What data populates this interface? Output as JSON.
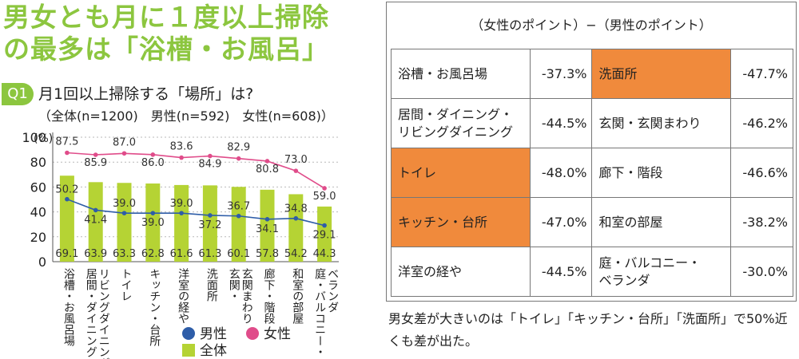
{
  "title_lines": [
    "男女とも月に１度以上掃除",
    "の最多は「浴槽・お風呂」"
  ],
  "question": {
    "badge": "Q1",
    "text": "月1回以上掃除する「場所」は?",
    "sub": "（全体(n=1200)　男性(n=592)　女性(n=608)）"
  },
  "chart_data": {
    "type": "bar",
    "categories": [
      "浴槽・お風呂場",
      "居間・ダイニング・リビングダイニング",
      "トイレ",
      "キッチン・台所",
      "洋室の経や",
      "洗面所",
      "玄関・玄関まわり",
      "廊下・階段",
      "和室の部屋",
      "庭・バルコニー・ベランダ"
    ],
    "category_labels": [
      "浴槽・お風呂場",
      "居間・ダイニング・\nリビングダイニング",
      "トイレ",
      "キッチン・台所",
      "洋室の経や",
      "洗面所",
      "玄関・\n玄関まわり",
      "廊下・階段",
      "和室の部屋",
      "庭・バルコニー・\nベランダ"
    ],
    "series": [
      {
        "name": "全体",
        "type": "bar",
        "color": "#b5d334",
        "values": [
          69.1,
          63.9,
          63.3,
          62.8,
          61.6,
          61.3,
          60.1,
          57.8,
          54.2,
          44.3
        ]
      },
      {
        "name": "男性",
        "type": "line",
        "color": "#2e5da8",
        "values": [
          50.2,
          41.4,
          39.0,
          39.0,
          39.0,
          37.2,
          36.7,
          34.1,
          34.8,
          29.1
        ]
      },
      {
        "name": "女性",
        "type": "line",
        "color": "#e04c8a",
        "values": [
          87.5,
          85.9,
          87.0,
          86.0,
          83.6,
          84.9,
          82.9,
          80.8,
          73.0,
          59.0
        ]
      }
    ],
    "y_unit_label": "(%)",
    "y_ticks": [
      "100",
      "80",
      "60",
      "40",
      "20",
      "0"
    ],
    "ylim": [
      0,
      100
    ],
    "legend": [
      "男性",
      "女性",
      "全体"
    ],
    "legend_position": "bottom-right"
  },
  "diff_panel": {
    "header": "（女性のポイント）−（男性のポイント）",
    "rows": [
      {
        "left": {
          "name": "浴槽・お風呂場",
          "value": "-37.3%",
          "highlight": false
        },
        "right": {
          "name": "洗面所",
          "value": "-47.7%",
          "highlight": true
        }
      },
      {
        "left": {
          "name": "居間・ダイニング・\nリビングダイニング",
          "value": "-44.5%",
          "highlight": false
        },
        "right": {
          "name": "玄関・玄関まわり",
          "value": "-46.2%",
          "highlight": false
        }
      },
      {
        "left": {
          "name": "トイレ",
          "value": "-48.0%",
          "highlight": true
        },
        "right": {
          "name": "廊下・階段",
          "value": "-46.6%",
          "highlight": false
        }
      },
      {
        "left": {
          "name": "キッチン・台所",
          "value": "-47.0%",
          "highlight": true
        },
        "right": {
          "name": "和室の部屋",
          "value": "-38.2%",
          "highlight": false
        }
      },
      {
        "left": {
          "name": "洋室の経や",
          "value": "-44.5%",
          "highlight": false
        },
        "right": {
          "name": "庭・バルコニー・\nベランダ",
          "value": "-30.0%",
          "highlight": false
        }
      }
    ],
    "highlight_color": "#f08a3c"
  },
  "note": "男女差が大きいのは「トイレ」「キッチン・台所」「洗面所」で50%近くも差が出た。"
}
